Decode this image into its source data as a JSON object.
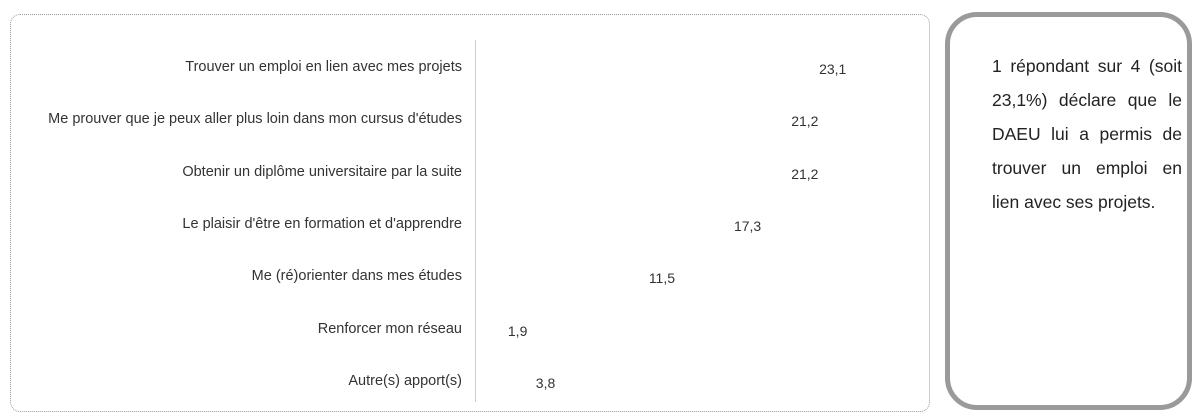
{
  "chart_data": {
    "type": "bar",
    "orientation": "horizontal",
    "categories": [
      "Trouver un emploi en lien avec mes projets",
      "Me prouver que je peux aller plus loin dans mon cursus d'études",
      "Obtenir un diplôme universitaire par la suite",
      "Le plaisir d'être en formation et d'apprendre",
      "Me (ré)orienter dans mes études",
      "Renforcer mon réseau",
      "Autre(s) apport(s)"
    ],
    "values": [
      23.1,
      21.2,
      21.2,
      17.3,
      11.5,
      1.9,
      3.8
    ],
    "value_labels": [
      "23,1",
      "21,2",
      "21,2",
      "17,3",
      "11,5",
      "1,9",
      "3,8"
    ],
    "color": "#79a89a"
  },
  "callout": {
    "text": "1 répondant sur 4 (soit 23,1%) déclare que le DAEU lui a permis de trouver un emploi en lien avec ses projets."
  }
}
